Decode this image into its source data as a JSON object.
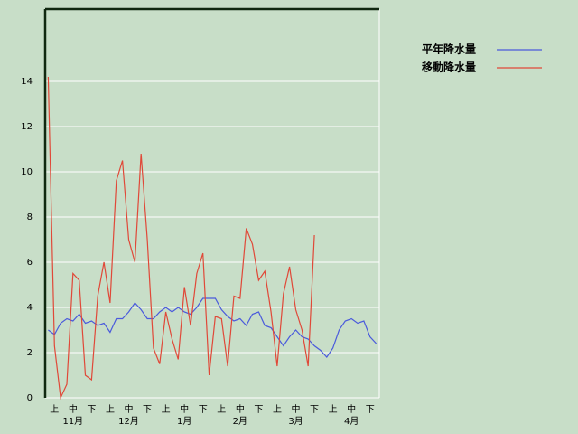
{
  "chart_data": {
    "type": "line",
    "categories": [
      null,
      "上",
      null,
      null,
      "中",
      null,
      null,
      "下",
      null,
      null,
      "上",
      null,
      null,
      "中",
      null,
      null,
      "下",
      null,
      null,
      "上",
      null,
      null,
      "中",
      null,
      null,
      "下",
      null,
      null,
      "上",
      null,
      null,
      "中",
      null,
      null,
      "下",
      null,
      null,
      "上",
      null,
      null,
      "中",
      null,
      null,
      "下",
      null,
      null,
      "上",
      null,
      null,
      "中",
      null,
      null,
      "下",
      null
    ],
    "month_labels": [
      "11月",
      "12月",
      "1月",
      "2月",
      "3月",
      "4月"
    ],
    "series": [
      {
        "name": "平年降水量",
        "color": "#4a5adc",
        "values": [
          3.0,
          2.8,
          3.3,
          3.5,
          3.4,
          3.7,
          3.3,
          3.4,
          3.2,
          3.3,
          2.9,
          3.5,
          3.5,
          3.8,
          4.2,
          3.9,
          3.5,
          3.5,
          3.8,
          4.0,
          3.8,
          4.0,
          3.8,
          3.7,
          4.0,
          4.4,
          4.4,
          4.4,
          3.9,
          3.6,
          3.4,
          3.5,
          3.2,
          3.7,
          3.8,
          3.2,
          3.1,
          2.7,
          2.3,
          2.7,
          3.0,
          2.7,
          2.6,
          2.3,
          2.1,
          1.8,
          2.2,
          3.0,
          3.4,
          3.5,
          3.3,
          3.4,
          2.7,
          2.4
        ]
      },
      {
        "name": "移動降水量",
        "color": "#e04838",
        "values": [
          14.2,
          2.3,
          0,
          0.6,
          5.5,
          5.2,
          1.0,
          0.8,
          4.5,
          6.0,
          4.2,
          9.6,
          10.5,
          7.0,
          6.0,
          10.8,
          7.0,
          2.2,
          1.5,
          3.8,
          2.6,
          1.7,
          4.9,
          3.2,
          5.5,
          6.4,
          1.0,
          3.6,
          3.5,
          1.4,
          4.5,
          4.4,
          7.5,
          6.8,
          5.2,
          5.6,
          3.8,
          1.4,
          4.6,
          5.8,
          3.9,
          3.0,
          1.4,
          7.2,
          null,
          null,
          null,
          null,
          null,
          null,
          null,
          null,
          null,
          null
        ]
      }
    ],
    "ylim": [
      0,
      17.2
    ],
    "yticks": [
      0,
      2,
      4,
      6,
      8,
      10,
      12,
      14
    ],
    "grid": true
  }
}
